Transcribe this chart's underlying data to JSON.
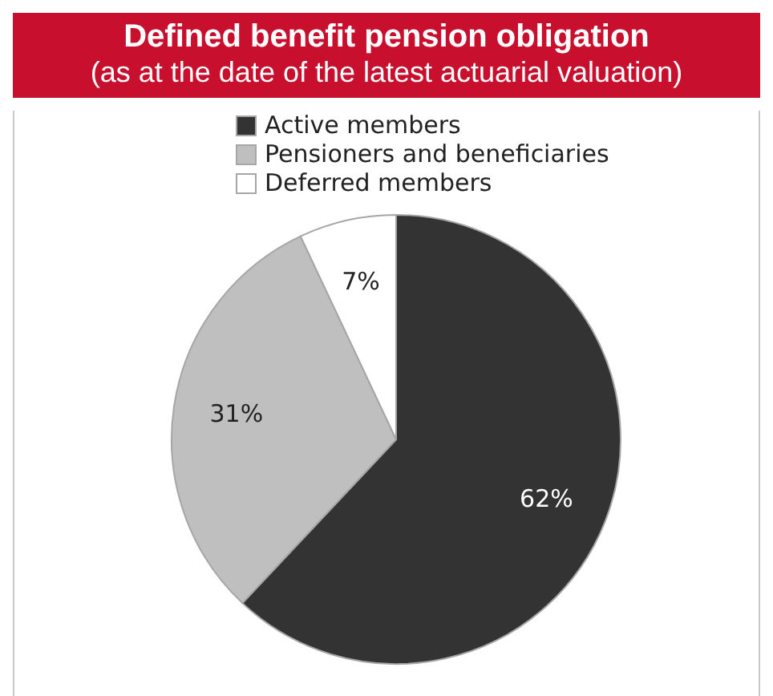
{
  "chart_data": {
    "type": "pie",
    "title": "Defined benefit pension obligation",
    "subtitle": "(as at the date of the latest actuarial valuation)",
    "categories": [
      "Active members",
      "Pensioners and beneficiaries",
      "Deferred members"
    ],
    "values": [
      62,
      31,
      7
    ],
    "colors": [
      "#333333",
      "#bfbfbf",
      "#ffffff"
    ],
    "value_labels": [
      "62%",
      "31%",
      "7%"
    ],
    "legend": "top"
  }
}
